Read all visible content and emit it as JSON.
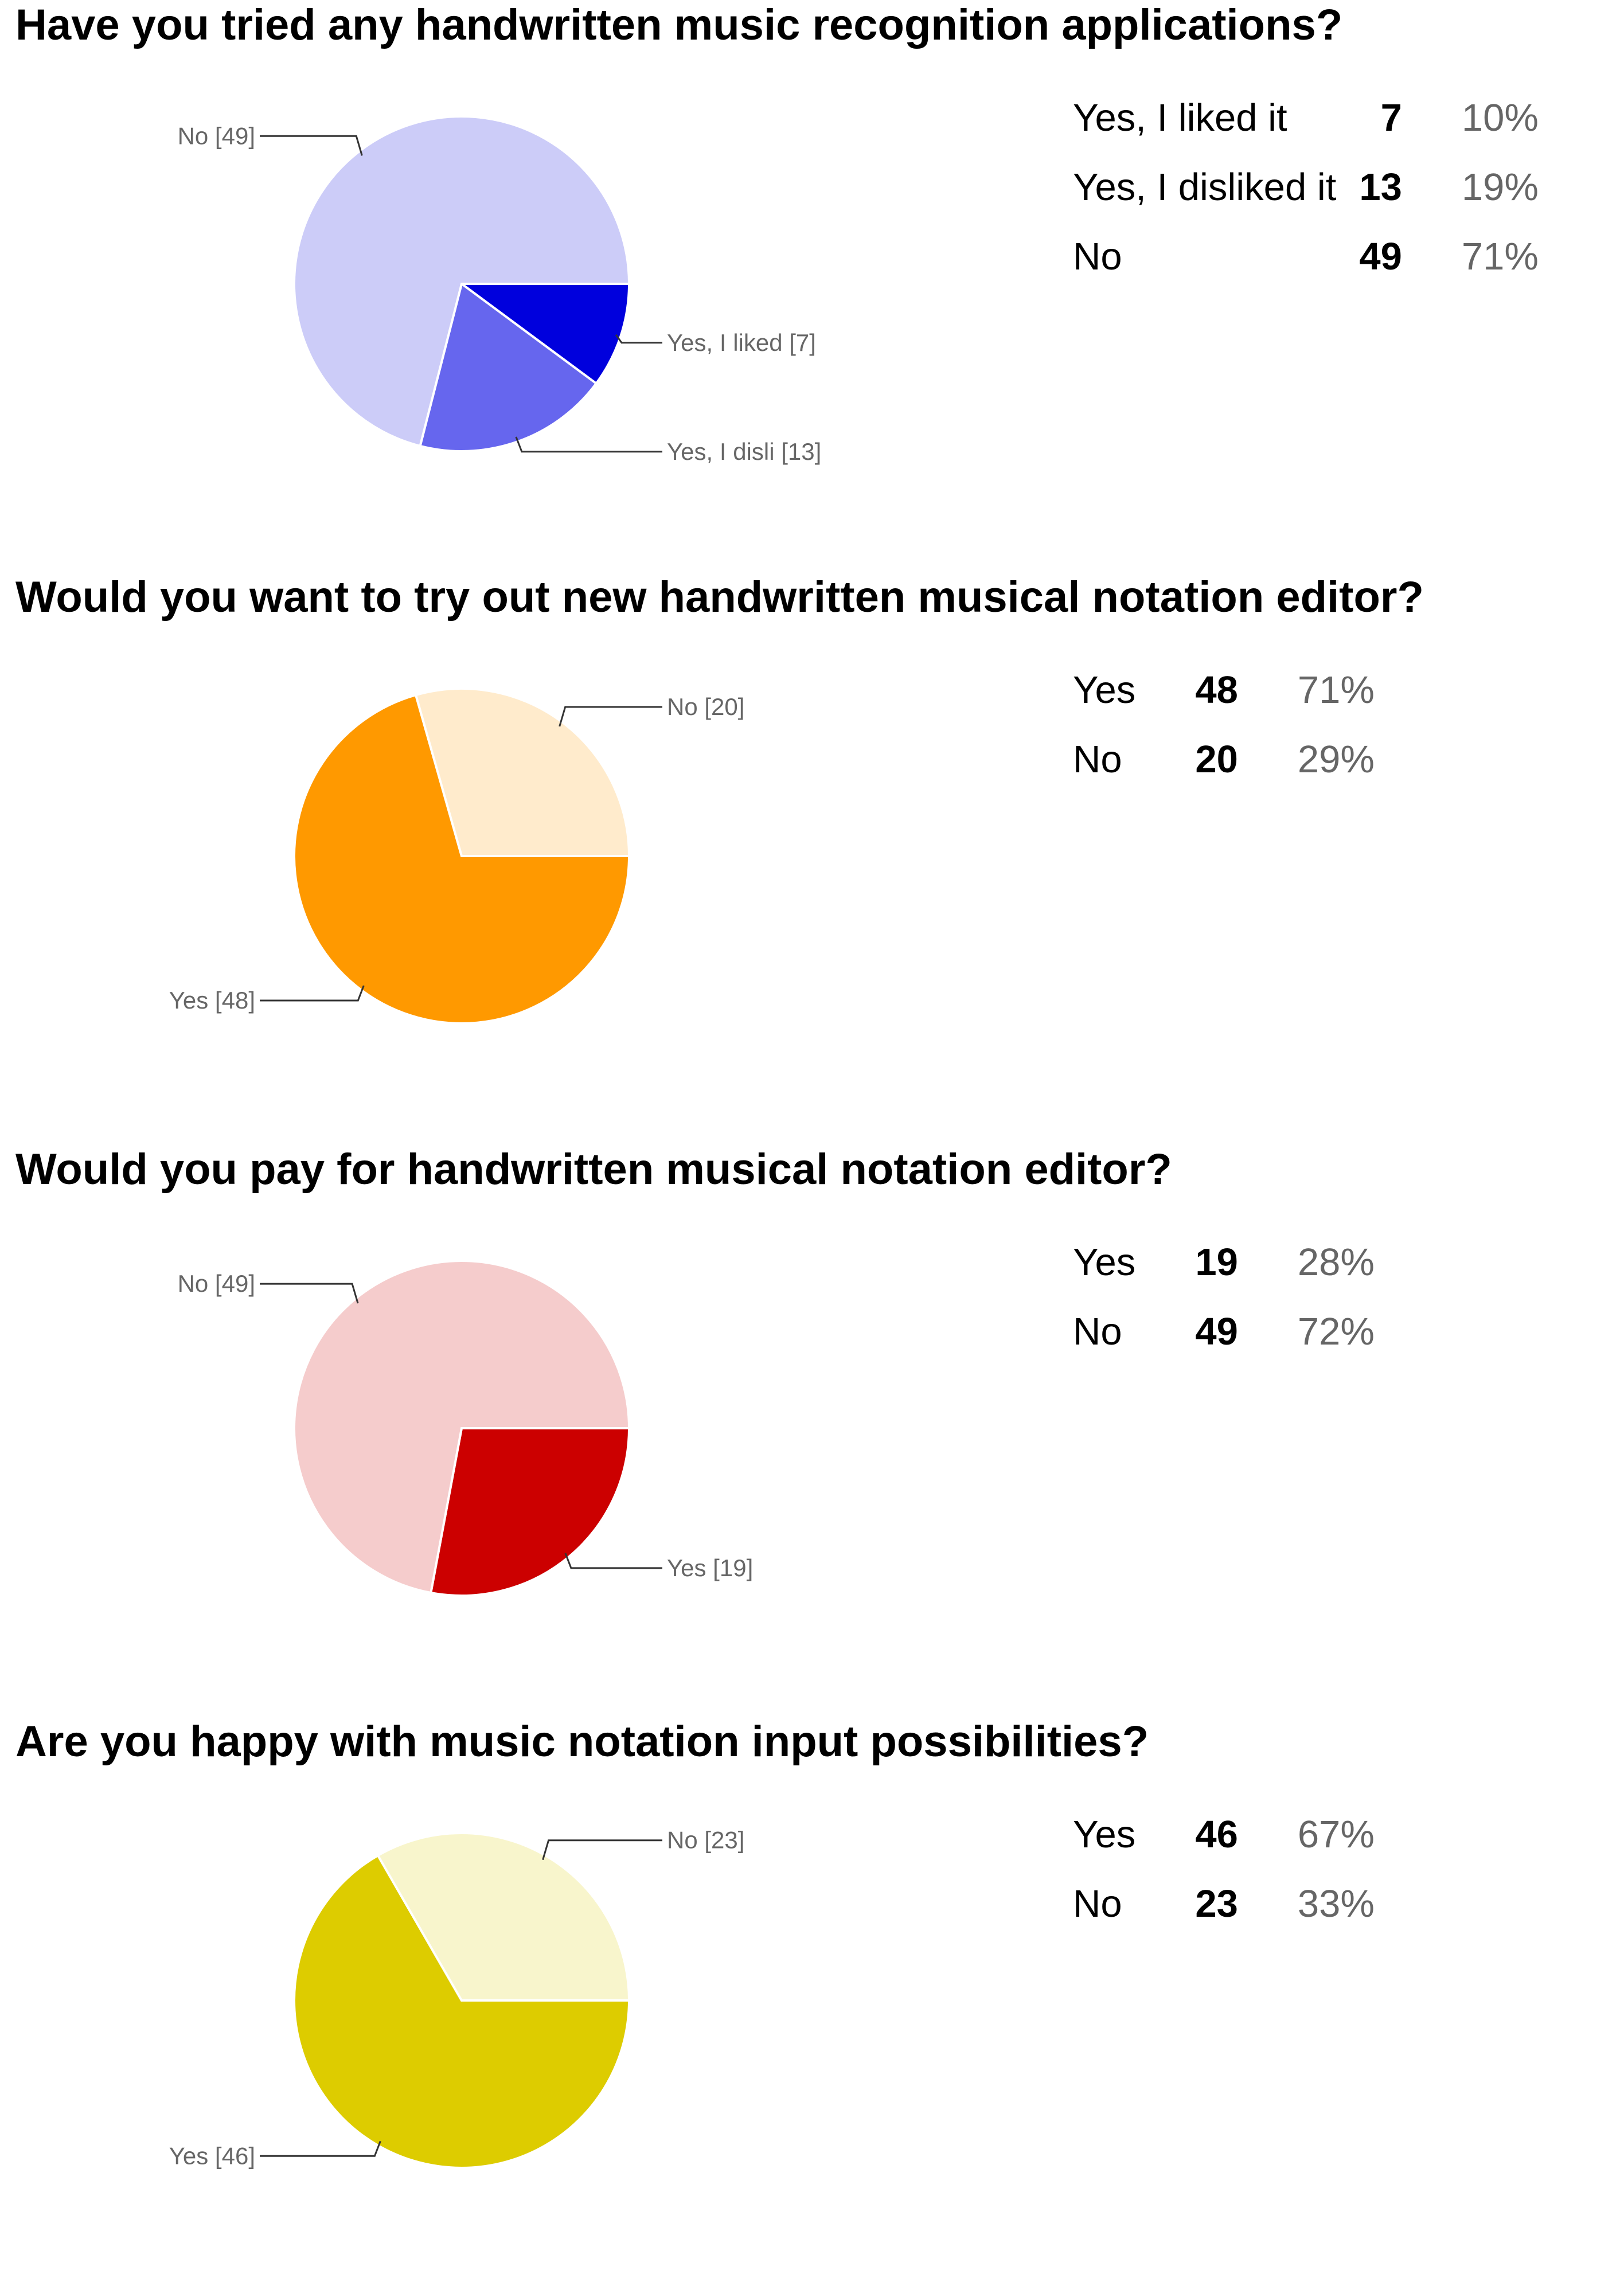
{
  "chart_data": [
    {
      "type": "pie",
      "title": "Have you tried any handwritten music recognition applications?",
      "slices": [
        {
          "label": "Yes, I liked it",
          "value": 7,
          "percent": "10%",
          "callout": "Yes, I liked  [7]",
          "color": "#0000dd"
        },
        {
          "label": "Yes, I disliked it",
          "value": 13,
          "percent": "19%",
          "callout": "Yes, I disli [13]",
          "color": "#6666ee"
        },
        {
          "label": "No",
          "value": 49,
          "percent": "71%",
          "callout": "No [49]",
          "color": "#ccccf8"
        }
      ]
    },
    {
      "type": "pie",
      "title": "Would you want to try out new handwritten musical notation editor?",
      "slices": [
        {
          "label": "Yes",
          "value": 48,
          "percent": "71%",
          "callout": "Yes [48]",
          "color": "#ff9900"
        },
        {
          "label": "No",
          "value": 20,
          "percent": "29%",
          "callout": "No [20]",
          "color": "#ffebcc"
        }
      ]
    },
    {
      "type": "pie",
      "title": "Would you pay for handwritten musical notation editor?",
      "slices": [
        {
          "label": "Yes",
          "value": 19,
          "percent": "28%",
          "callout": "Yes [19]",
          "color": "#cc0000"
        },
        {
          "label": "No",
          "value": 49,
          "percent": "72%",
          "callout": "No [49]",
          "color": "#f5cccc"
        }
      ]
    },
    {
      "type": "pie",
      "title": "Are you happy with music notation input possibilities?",
      "slices": [
        {
          "label": "Yes",
          "value": 46,
          "percent": "67%",
          "callout": "Yes [46]",
          "color": "#ddcc00"
        },
        {
          "label": "No",
          "value": 23,
          "percent": "33%",
          "callout": "No [23]",
          "color": "#f8f5cc"
        }
      ]
    }
  ]
}
